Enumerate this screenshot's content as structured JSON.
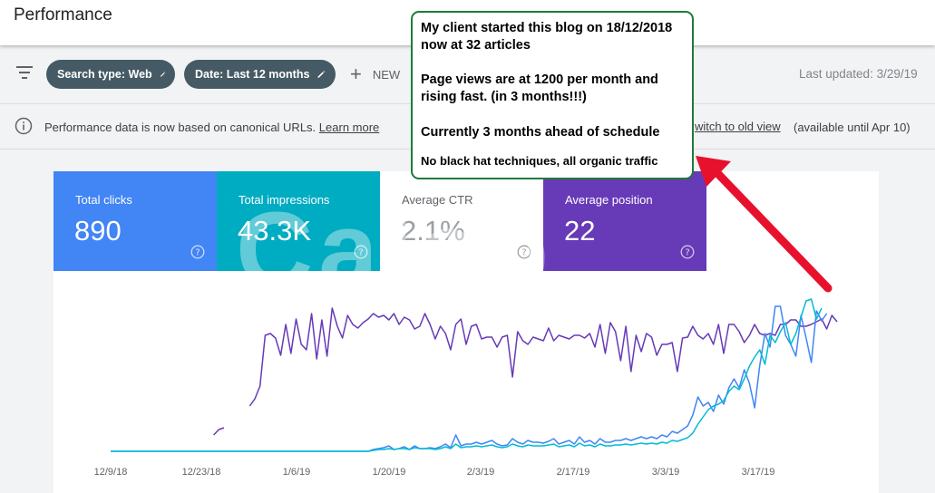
{
  "header": {
    "title": "Performance"
  },
  "filters": {
    "search_type": "Search type: Web",
    "date": "Date: Last 12 months",
    "new_label": "NEW",
    "last_updated": "Last updated: 3/29/19"
  },
  "notice": {
    "text": "Performance data is now based on canonical URLs.",
    "learn_more": "Learn more",
    "old_view_link": "witch to old view",
    "available": "(available until Apr 10)"
  },
  "metrics": [
    {
      "label": "Total clicks",
      "value": "890",
      "color": "#4285f4"
    },
    {
      "label": "Total impressions",
      "value": "43.3K",
      "color": "#00acc1"
    },
    {
      "label": "Average CTR",
      "value": "2.1%",
      "color": "#ffffff"
    },
    {
      "label": "Average position",
      "value": "22",
      "color": "#673ab7"
    }
  ],
  "watermark": "Caleb",
  "annotation": {
    "line1": "My client started this blog on 18/12/2018 now at 32 articles",
    "line2": "Page views are at 1200 per month and rising fast. (in 3 months!!!)",
    "line3": "Currently 3 months ahead of schedule",
    "line4": "No black hat techniques, all organic traffic",
    "border_color": "#1e7a3c",
    "arrow_color": "#e8112d"
  },
  "chart_data": {
    "type": "line",
    "x_tick_labels": [
      "12/9/18",
      "12/23/18",
      "1/6/19",
      "1/20/19",
      "2/3/19",
      "2/17/19",
      "3/3/19",
      "3/17/19"
    ],
    "grid": false,
    "legend": "none",
    "series": [
      {
        "color": "#673ab7",
        "values": [
          null,
          null,
          null,
          null,
          null,
          null,
          null,
          null,
          null,
          null,
          null,
          null,
          null,
          null,
          null,
          null,
          null,
          null,
          null,
          null,
          18,
          24,
          26,
          null,
          null,
          null,
          null,
          50,
          58,
          72,
          128,
          130,
          125,
          106,
          140,
          108,
          146,
          118,
          112,
          152,
          102,
          145,
          105,
          158,
          138,
          125,
          150,
          140,
          136,
          142,
          146,
          152,
          148,
          150,
          145,
          152,
          140,
          148,
          145,
          135,
          138,
          152,
          140,
          124,
          138,
          130,
          112,
          140,
          146,
          118,
          138,
          140,
          124,
          126,
          126,
          115,
          126,
          128,
          82,
          132,
          122,
          118,
          126,
          124,
          122,
          136,
          122,
          128,
          126,
          124,
          128,
          128,
          125,
          130,
          115,
          140,
          108,
          142,
          132,
          100,
          138,
          88,
          128,
          110,
          130,
          126,
          106,
          118,
          118,
          120,
          88,
          125,
          126,
          138,
          128,
          124,
          130,
          118,
          140,
          108,
          140,
          140,
          132,
          120,
          128,
          140,
          130,
          128,
          130,
          128,
          140,
          140,
          145,
          145,
          138,
          138,
          140,
          143,
          146,
          135,
          150,
          143
        ]
      },
      {
        "color": "#4285f4",
        "values": [
          0,
          0,
          0,
          0,
          0,
          0,
          0,
          0,
          0,
          0,
          0,
          0,
          0,
          0,
          0,
          0,
          0,
          0,
          0,
          0,
          0,
          0,
          0,
          0,
          0,
          0,
          0,
          0,
          0,
          0,
          0,
          0,
          0,
          0,
          0,
          0,
          0,
          0,
          0,
          0,
          0,
          0,
          0,
          0,
          0,
          0,
          0,
          0,
          0,
          0,
          0,
          2,
          3,
          4,
          6,
          2,
          3,
          5,
          2,
          6,
          3,
          3,
          4,
          3,
          5,
          8,
          4,
          18,
          6,
          8,
          8,
          10,
          8,
          10,
          12,
          8,
          6,
          7,
          14,
          10,
          8,
          12,
          10,
          10,
          9,
          11,
          14,
          8,
          10,
          12,
          8,
          16,
          10,
          12,
          8,
          14,
          10,
          10,
          12,
          12,
          14,
          12,
          14,
          16,
          14,
          16,
          14,
          18,
          16,
          22,
          20,
          24,
          28,
          40,
          60,
          50,
          54,
          44,
          62,
          52,
          70,
          80,
          70,
          90,
          75,
          48,
          95,
          130,
          115,
          160,
          160,
          128,
          118,
          105,
          150,
          125,
          98,
          155,
          144,
          152
        ]
      },
      {
        "color": "#00bcd4",
        "values": [
          0,
          0,
          0,
          0,
          0,
          0,
          0,
          0,
          0,
          0,
          0,
          0,
          0,
          0,
          0,
          0,
          0,
          0,
          0,
          0,
          0,
          0,
          0,
          0,
          0,
          0,
          0,
          0,
          0,
          0,
          0,
          0,
          0,
          0,
          0,
          0,
          0,
          0,
          0,
          0,
          0,
          0,
          0,
          0,
          0,
          0,
          0,
          0,
          0,
          0,
          0,
          1,
          2,
          2,
          3,
          2,
          3,
          3,
          2,
          4,
          3,
          3,
          3,
          2,
          3,
          5,
          3,
          8,
          4,
          5,
          5,
          6,
          5,
          6,
          7,
          5,
          4,
          5,
          8,
          6,
          5,
          7,
          6,
          6,
          6,
          7,
          8,
          5,
          6,
          7,
          5,
          9,
          6,
          7,
          5,
          8,
          6,
          6,
          7,
          7,
          8,
          7,
          8,
          9,
          8,
          9,
          8,
          10,
          9,
          12,
          11,
          13,
          15,
          20,
          30,
          38,
          46,
          50,
          52,
          56,
          66,
          72,
          68,
          80,
          94,
          104,
          112,
          96,
          128,
          120,
          132,
          142,
          118,
          130,
          148,
          166,
          168,
          146,
          158
        ]
      }
    ]
  }
}
